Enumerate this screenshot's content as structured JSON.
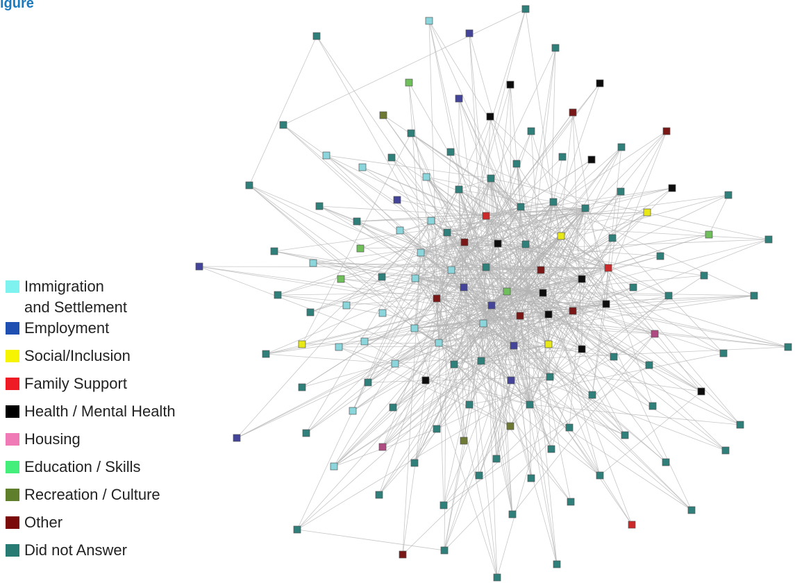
{
  "figure": {
    "title_fragment": "igure"
  },
  "legend": {
    "items": [
      {
        "label": "Immigration\n and Settlement",
        "color": "#7ef2ef",
        "category": "immigration"
      },
      {
        "label": "Employment",
        "color": "#1f4fb0",
        "category": "employment"
      },
      {
        "label": "Social/Inclusion",
        "color": "#f6f400",
        "category": "social"
      },
      {
        "label": "Family Support",
        "color": "#ee1b24",
        "category": "family"
      },
      {
        "label": "Health / Mental Health",
        "color": "#000000",
        "category": "health"
      },
      {
        "label": "Housing",
        "color": "#ef7ab5",
        "category": "housing"
      },
      {
        "label": "Education / Skills",
        "color": "#43ef7a",
        "category": "education"
      },
      {
        "label": "Recreation / Culture",
        "color": "#5f7f2d",
        "category": "recreation"
      },
      {
        "label": "Other",
        "color": "#7a0a0a",
        "category": "other"
      },
      {
        "label": "Did not Answer",
        "color": "#287b73",
        "category": "none"
      }
    ]
  },
  "network": {
    "edge_color": "#b4b4b4",
    "node_colors": {
      "immigration": "#8ad6dc",
      "employment": "#44449a",
      "social": "#e8e816",
      "family": "#cc2a2a",
      "health": "#0d0d0d",
      "housing": "#b04a82",
      "education": "#6fbf5a",
      "recreation": "#6e7a33",
      "other": "#7a1818",
      "none": "#2f7f7a"
    }
  }
}
